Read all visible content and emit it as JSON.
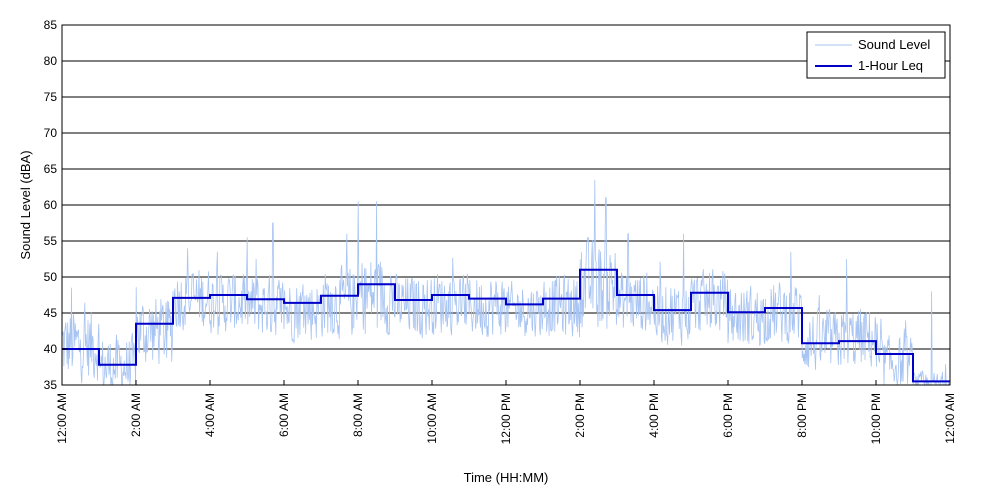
{
  "chart_data": {
    "type": "line",
    "title": "",
    "xlabel": "Time (HH:MM)",
    "ylabel": "Sound Level (dBA)",
    "xlim": [
      0,
      24
    ],
    "ylim": [
      35,
      85
    ],
    "y_ticks": [
      35,
      40,
      45,
      50,
      55,
      60,
      65,
      70,
      75,
      80,
      85
    ],
    "x_ticks": [
      0,
      2,
      4,
      6,
      8,
      10,
      12,
      14,
      16,
      18,
      20,
      22,
      24
    ],
    "x_tick_labels": [
      "12:00 AM",
      "2:00 AM",
      "4:00 AM",
      "6:00 AM",
      "8:00 AM",
      "10:00 AM",
      "12:00 PM",
      "2:00 PM",
      "4:00 PM",
      "6:00 PM",
      "8:00 PM",
      "10:00 PM",
      "12:00 AM"
    ],
    "grid": "horizontal",
    "legend_position": "top-right",
    "series": [
      {
        "name": "Sound Level",
        "style": "thin-noisy-line",
        "color": "#a8c4f2",
        "hourly_mean": [
          40.5,
          37.5,
          42.5,
          47.0,
          46.5,
          46.0,
          45.5,
          46.5,
          47.5,
          46.0,
          46.5,
          46.0,
          45.5,
          46.0,
          49.0,
          46.5,
          45.0,
          46.5,
          44.5,
          45.0,
          41.0,
          41.5,
          38.0,
          35.0
        ],
        "hourly_range": [
          4.0,
          3.5,
          4.0,
          3.5,
          3.5,
          3.5,
          3.5,
          4.0,
          4.5,
          3.5,
          3.5,
          3.5,
          3.0,
          3.5,
          5.0,
          3.5,
          3.5,
          3.5,
          3.5,
          3.5,
          3.5,
          3.5,
          3.0,
          1.5
        ],
        "peaks": [
          {
            "x": 0.25,
            "y": 48.5
          },
          {
            "x": 3.4,
            "y": 54.0
          },
          {
            "x": 4.2,
            "y": 53.5
          },
          {
            "x": 5.25,
            "y": 52.5
          },
          {
            "x": 5.7,
            "y": 57.5
          },
          {
            "x": 7.7,
            "y": 56.0
          },
          {
            "x": 8.0,
            "y": 60.5
          },
          {
            "x": 8.5,
            "y": 60.5
          },
          {
            "x": 14.4,
            "y": 63.5
          },
          {
            "x": 14.7,
            "y": 61.0
          },
          {
            "x": 15.3,
            "y": 56.0
          },
          {
            "x": 16.8,
            "y": 56.0
          },
          {
            "x": 19.7,
            "y": 53.5
          },
          {
            "x": 21.2,
            "y": 52.5
          },
          {
            "x": 23.5,
            "y": 48.0
          }
        ]
      },
      {
        "name": "1-Hour Leq",
        "style": "step",
        "color": "#0000c8",
        "x": [
          0,
          1,
          2,
          3,
          4,
          5,
          6,
          7,
          8,
          9,
          10,
          11,
          12,
          13,
          14,
          15,
          16,
          17,
          18,
          19,
          20,
          21,
          22,
          23
        ],
        "values": [
          40.0,
          37.8,
          43.5,
          47.1,
          47.5,
          46.9,
          46.4,
          47.4,
          49.0,
          46.8,
          47.5,
          47.0,
          46.2,
          47.0,
          51.0,
          47.5,
          45.4,
          47.8,
          45.1,
          45.7,
          40.8,
          41.1,
          39.3,
          35.5
        ]
      }
    ]
  }
}
